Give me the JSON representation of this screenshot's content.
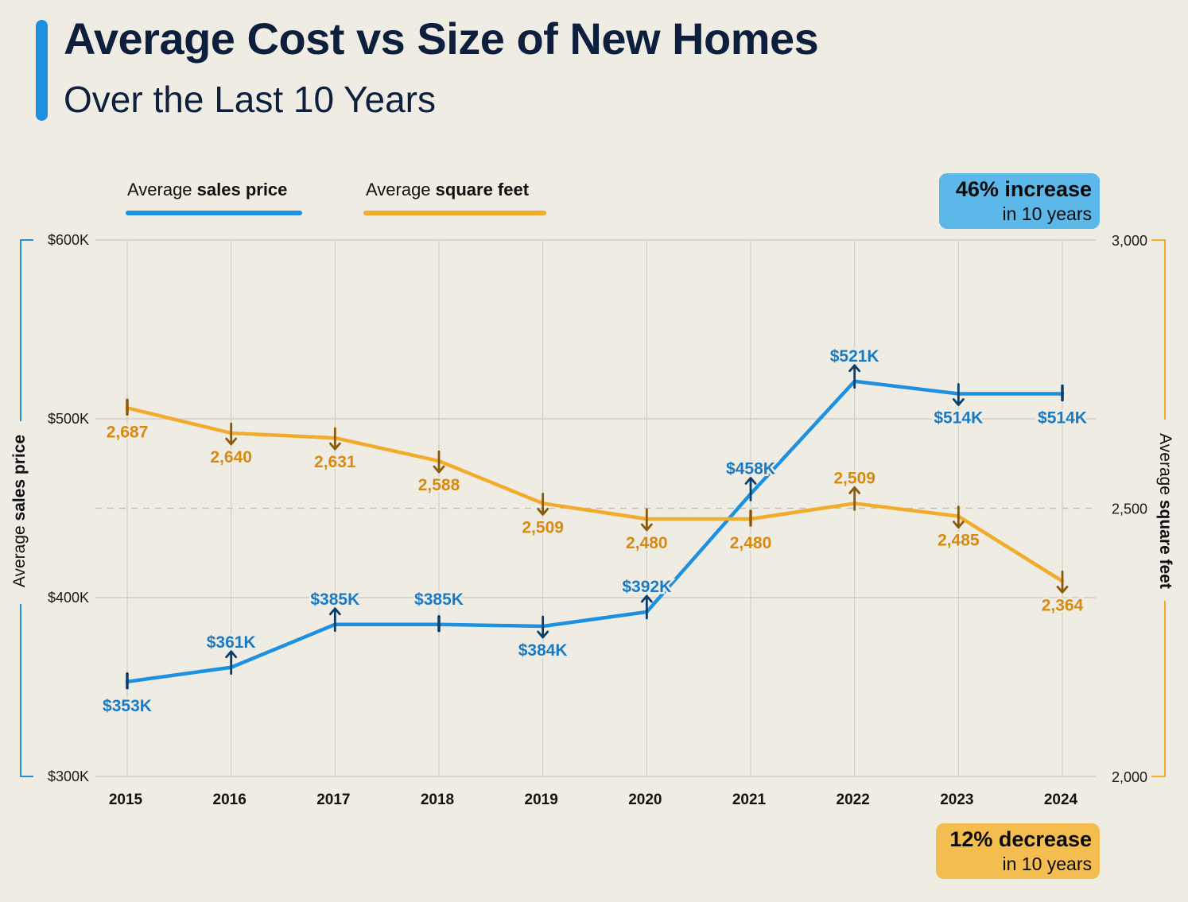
{
  "header": {
    "title": "Average Cost vs Size of New Homes",
    "subtitle": "Over the Last 10 Years"
  },
  "legend": [
    {
      "prefix": "Average ",
      "bold": "sales price",
      "color": "#1e90e0"
    },
    {
      "prefix": "Average ",
      "bold": "square feet",
      "color": "#f2ab2a"
    }
  ],
  "badges": {
    "price": {
      "big": "46% increase",
      "small": "in 10 years",
      "color": "#5bb8e8"
    },
    "sqft": {
      "big": "12% decrease",
      "small": "in 10 years",
      "color": "#f4bd50"
    }
  },
  "chart_data": {
    "type": "line",
    "title": "Average Cost vs Size of New Homes",
    "subtitle": "Over the Last 10 Years",
    "categories": [
      "2015",
      "2016",
      "2017",
      "2018",
      "2019",
      "2020",
      "2021",
      "2022",
      "2023",
      "2024"
    ],
    "series": [
      {
        "name": "Average sales price",
        "axis": "left",
        "color": "#1e90e0",
        "marker_color": "#0b3d6b",
        "label_color": "#1a7ac4",
        "values": [
          353,
          361,
          385,
          385,
          384,
          392,
          458,
          521,
          514,
          514
        ],
        "labels": [
          "$353K",
          "$361K",
          "$385K",
          "$385K",
          "$384K",
          "$392K",
          "$458K",
          "$521K",
          "$514K",
          "$514K"
        ],
        "markers": [
          "none",
          "up",
          "up",
          "none",
          "down",
          "up",
          "up",
          "up",
          "down",
          "none"
        ],
        "label_pos": [
          "below",
          "above",
          "above",
          "above",
          "below",
          "above",
          "above",
          "above",
          "below",
          "below"
        ]
      },
      {
        "name": "Average square feet",
        "axis": "right",
        "color": "#f2ab2a",
        "marker_color": "#8a5a0c",
        "label_color": "#d88a10",
        "values": [
          2687,
          2640,
          2631,
          2588,
          2509,
          2480,
          2480,
          2509,
          2485,
          2364
        ],
        "labels": [
          "2,687",
          "2,640",
          "2,631",
          "2,588",
          "2,509",
          "2,480",
          "2,480",
          "2,509",
          "2,485",
          "2,364"
        ],
        "markers": [
          "none",
          "down",
          "down",
          "down",
          "down",
          "down",
          "none",
          "up",
          "down",
          "down"
        ],
        "label_pos": [
          "below",
          "below",
          "below",
          "below",
          "below",
          "below",
          "below",
          "above",
          "below",
          "below"
        ]
      }
    ],
    "left_axis": {
      "title_prefix": "Average ",
      "title_bold": "sales price",
      "ylim": [
        300,
        600
      ],
      "ticks": [
        {
          "v": 600,
          "label": "$600K"
        },
        {
          "v": 500,
          "label": "$500K"
        },
        {
          "v": 400,
          "label": "$400K"
        },
        {
          "v": 300,
          "label": "$300K"
        }
      ],
      "color": "#1e90e0"
    },
    "right_axis": {
      "title_prefix": "Average ",
      "title_bold": "square feet",
      "ylim": [
        2000,
        3000
      ],
      "ticks": [
        {
          "v": 3000,
          "label": "3,000"
        },
        {
          "v": 2500,
          "label": "2,500"
        },
        {
          "v": 2000,
          "label": "2,000"
        }
      ],
      "color": "#f2ab2a"
    },
    "grid": true,
    "reference_line": {
      "axis": "right",
      "value": 2500,
      "style": "dashed"
    },
    "legend_position": "top-left"
  }
}
